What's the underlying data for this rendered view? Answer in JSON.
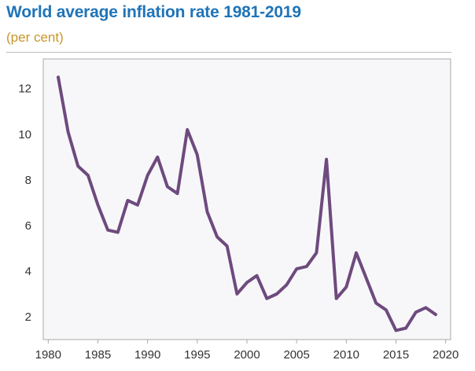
{
  "header": {
    "title": "World average inflation rate 1981-2019",
    "subtitle": "(per cent)"
  },
  "colors": {
    "title": "#1f74b8",
    "subtitle": "#c8952a",
    "line": "#6e4a7e",
    "plot_background": "#f7f7f9",
    "plot_border": "#a9a9a9"
  },
  "chart_data": {
    "type": "line",
    "title": "World average inflation rate 1981-2019",
    "subtitle": "(per cent)",
    "xlabel": "",
    "ylabel": "",
    "xlim": [
      1979.5,
      2020.5
    ],
    "ylim": [
      1,
      13.3
    ],
    "grid": false,
    "legend": "none",
    "x_ticks": [
      1980,
      1985,
      1990,
      1995,
      2000,
      2005,
      2010,
      2015,
      2020
    ],
    "y_ticks": [
      2,
      4,
      6,
      8,
      10,
      12
    ],
    "x": [
      1981,
      1982,
      1983,
      1984,
      1985,
      1986,
      1987,
      1988,
      1989,
      1990,
      1991,
      1992,
      1993,
      1994,
      1995,
      1996,
      1997,
      1998,
      1999,
      2000,
      2001,
      2002,
      2003,
      2004,
      2005,
      2006,
      2007,
      2008,
      2009,
      2010,
      2011,
      2012,
      2013,
      2014,
      2015,
      2016,
      2017,
      2018,
      2019
    ],
    "series": [
      {
        "values": [
          12.5,
          10.1,
          8.6,
          8.2,
          6.9,
          5.8,
          5.7,
          7.1,
          6.9,
          8.2,
          9.0,
          7.7,
          7.4,
          10.2,
          9.1,
          6.6,
          5.5,
          5.1,
          3.0,
          3.5,
          3.8,
          2.8,
          3.0,
          3.4,
          4.1,
          4.2,
          4.8,
          8.9,
          2.8,
          3.3,
          4.8,
          3.7,
          2.6,
          2.3,
          1.4,
          1.5,
          2.2,
          2.4,
          2.1
        ]
      }
    ]
  }
}
